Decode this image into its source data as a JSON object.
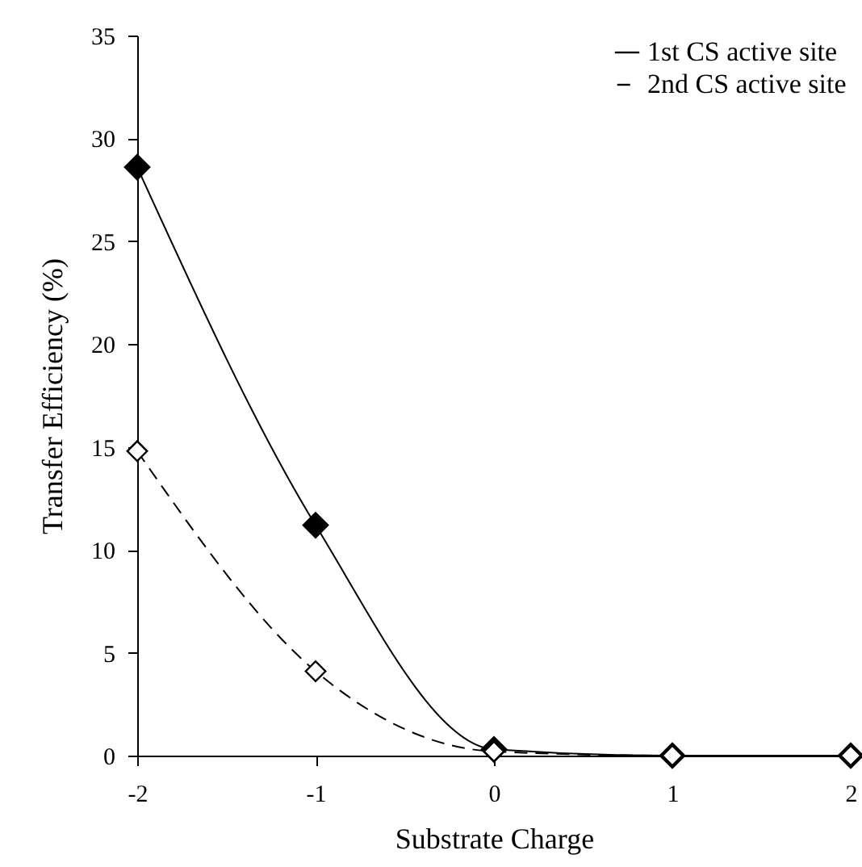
{
  "chart_data": {
    "type": "line",
    "xlabel": "Substrate Charge",
    "ylabel": "Transfer Efficiency (%)",
    "x": [
      -2,
      -1,
      0,
      1,
      2
    ],
    "series": [
      {
        "name": "1st CS active site",
        "color": "#000000",
        "line_style": "solid",
        "values": [
          28.6,
          11.2,
          0.3,
          0,
          0
        ]
      },
      {
        "name": "2nd CS active site",
        "color": "#000000",
        "line_style": "dashed",
        "values": [
          14.8,
          4.1,
          0.2,
          0,
          0
        ]
      }
    ],
    "xlim": [
      -2,
      2
    ],
    "xticks": [
      -2,
      -1,
      0,
      1,
      2
    ],
    "ylim": [
      0,
      35
    ],
    "yticks": [
      0,
      5,
      10,
      15,
      20,
      25,
      30,
      35
    ],
    "grid": false,
    "legend": "top right",
    "marker": "diamond"
  }
}
